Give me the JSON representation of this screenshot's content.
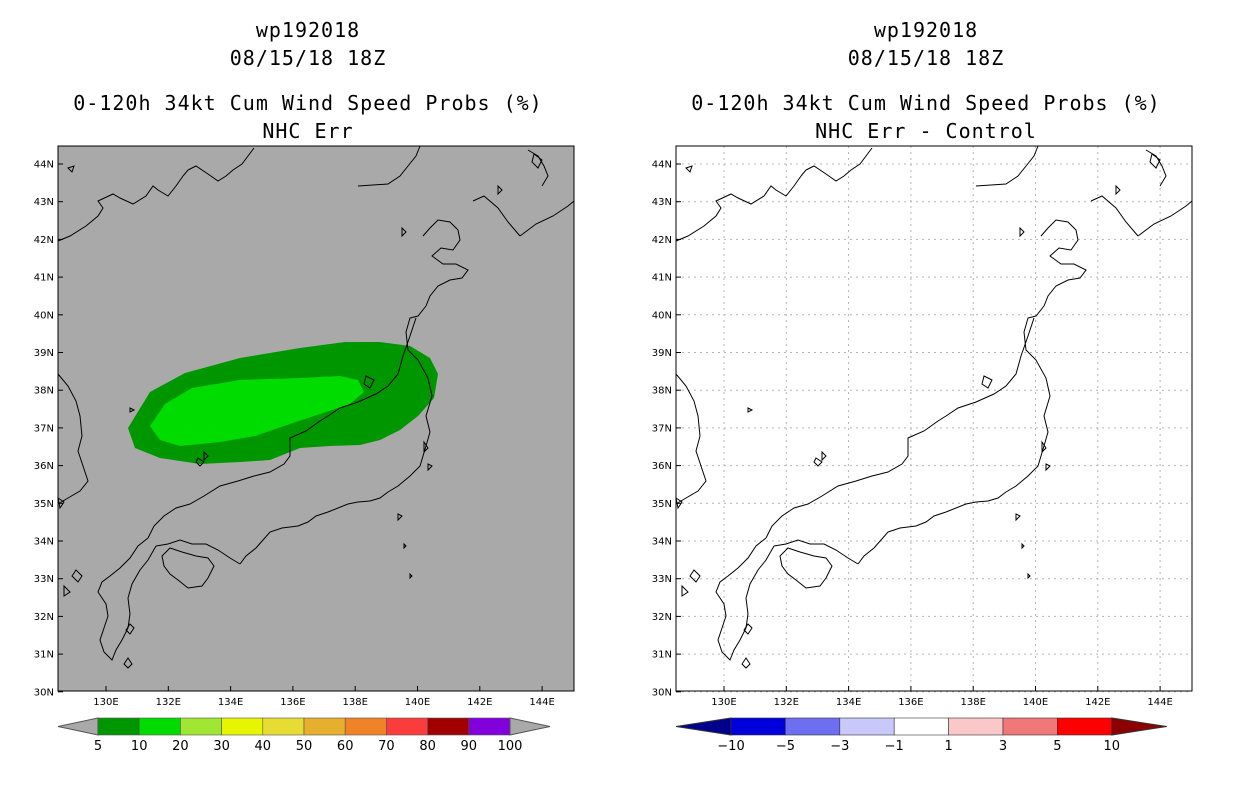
{
  "panels": {
    "left": {
      "storm_id": "wp192018",
      "datetime": "08/15/18 18Z",
      "product": "0-120h 34kt Cum Wind Speed Probs (%)",
      "subtitle": "NHC Err",
      "background_color": "#a9a9a9",
      "probability_regions": [
        {
          "level_pct": 5,
          "color": "#009600"
        },
        {
          "level_pct": 10,
          "color": "#00dc00"
        }
      ],
      "colorbar": {
        "labels": [
          "5",
          "10",
          "20",
          "30",
          "40",
          "50",
          "60",
          "70",
          "80",
          "90",
          "100"
        ],
        "colors": [
          "#009600",
          "#00dc00",
          "#a0e632",
          "#e6f500",
          "#e6dc32",
          "#e6af2d",
          "#f08228",
          "#fa3c3c",
          "#a00000",
          "#8200dc"
        ],
        "end_color": "#a9a9a9"
      }
    },
    "right": {
      "storm_id": "wp192018",
      "datetime": "08/15/18 18Z",
      "product": "0-120h 34kt Cum Wind Speed Probs (%)",
      "subtitle": "NHC Err - Control",
      "background_color": "#ffffff",
      "colorbar": {
        "labels": [
          "−10",
          "−5",
          "−3",
          "−1",
          "1",
          "3",
          "5",
          "10"
        ],
        "colors": [
          "#0000dc",
          "#6e6ef0",
          "#c8c8fa",
          "#ffffff",
          "#fac8c8",
          "#f07878",
          "#ff0000"
        ],
        "low_end_color": "#00008c",
        "high_end_color": "#8c0000"
      }
    }
  },
  "map": {
    "lat_labels": [
      "44N",
      "43N",
      "42N",
      "41N",
      "40N",
      "39N",
      "38N",
      "37N",
      "36N",
      "35N",
      "34N",
      "33N",
      "32N",
      "31N",
      "30N"
    ],
    "lon_labels": [
      "130E",
      "132E",
      "134E",
      "136E",
      "138E",
      "140E",
      "142E",
      "144E"
    ]
  }
}
